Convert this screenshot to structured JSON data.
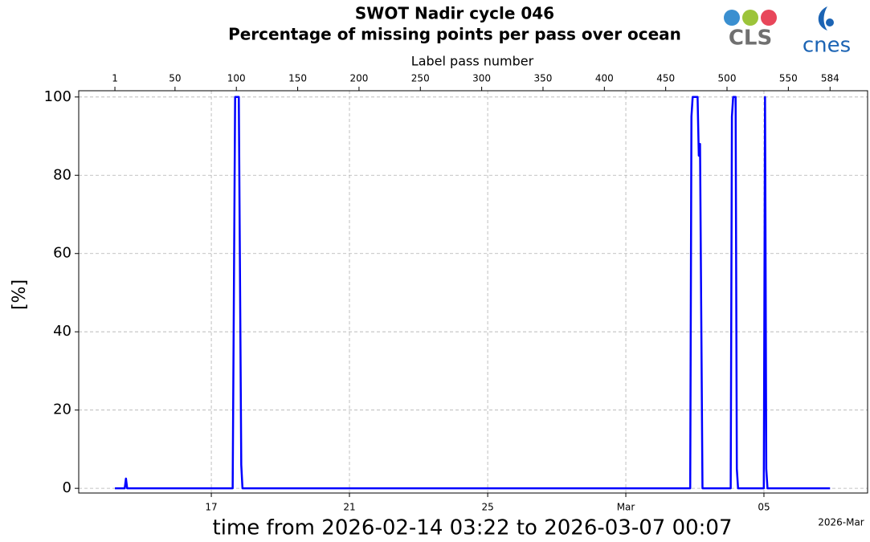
{
  "chart_data": {
    "type": "line",
    "title": "SWOT Nadir cycle 046",
    "subtitle": "Percentage of missing points per pass over ocean",
    "logos": [
      "CLS",
      "cnes"
    ],
    "xlabel": "time from 2026-02-14 03:22 to 2026-03-07 00:07",
    "x_offset_label": "2026-Mar",
    "x2label": "Label pass number",
    "ylabel": "[%]",
    "xlim": [
      -28.5,
      614.6
    ],
    "xticks": [
      {
        "value": 79.6,
        "label": "17"
      },
      {
        "value": 192.2,
        "label": "21"
      },
      {
        "value": 304.9,
        "label": "25"
      },
      {
        "value": 417.5,
        "label": "Mar"
      },
      {
        "value": 530.1,
        "label": "05"
      }
    ],
    "x2ticks": [
      1,
      50,
      100,
      150,
      200,
      250,
      300,
      350,
      400,
      450,
      500,
      550,
      584
    ],
    "ylim": [
      -1.2,
      101.6
    ],
    "yticks": [
      0,
      20,
      40,
      60,
      80,
      100
    ],
    "grid": true,
    "x": [
      1,
      9,
      10,
      11,
      97,
      99,
      102,
      104,
      105,
      470,
      471,
      472,
      476,
      477,
      478,
      480,
      503,
      504,
      505,
      507,
      508,
      509,
      530,
      531,
      532,
      533,
      584
    ],
    "series": [
      {
        "name": "missing points",
        "color": "#0000ff",
        "values": [
          0,
          0,
          2.5,
          0,
          0,
          100,
          100,
          6,
          0,
          0,
          95,
          100,
          100,
          85,
          88,
          0,
          0,
          95,
          100,
          100,
          5,
          0,
          0,
          100,
          5,
          0,
          0
        ]
      }
    ]
  }
}
